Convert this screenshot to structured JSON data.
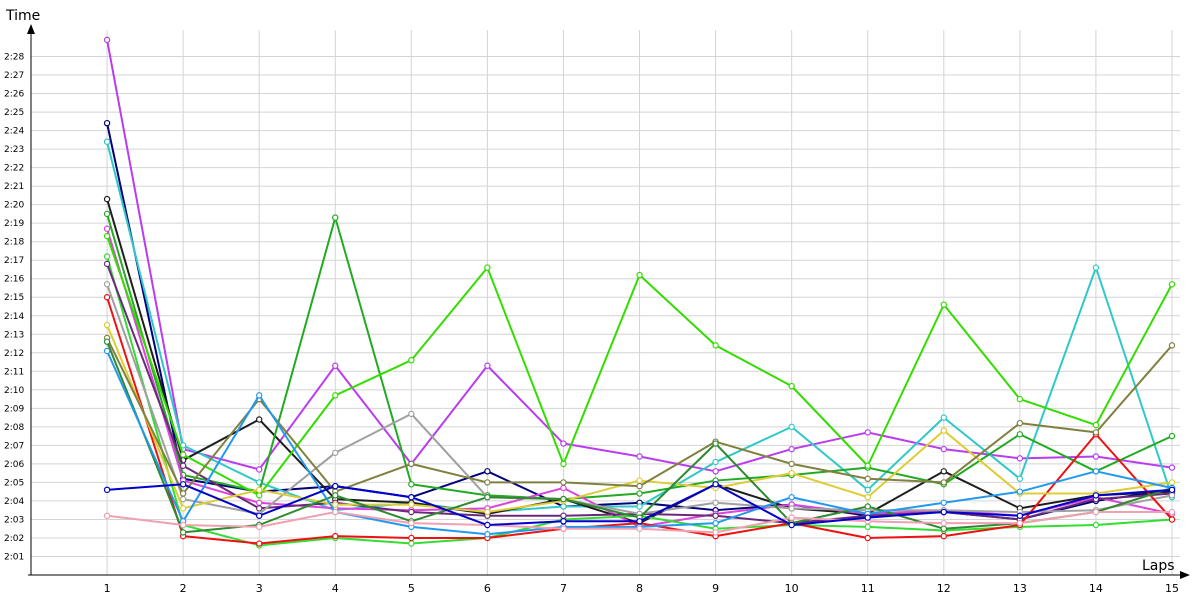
{
  "chart_data": {
    "type": "line",
    "xlabel": "Laps",
    "ylabel": "Time",
    "x": [
      1,
      2,
      3,
      4,
      5,
      6,
      7,
      8,
      9,
      10,
      11,
      12,
      13,
      14,
      15
    ],
    "ylim": [
      120,
      149
    ],
    "xlim": [
      0,
      15
    ],
    "y_tick_values": [
      121,
      122,
      123,
      124,
      125,
      126,
      127,
      128,
      129,
      130,
      131,
      132,
      133,
      134,
      135,
      136,
      137,
      138,
      139,
      140,
      141,
      142,
      143,
      144,
      145,
      146,
      147,
      148
    ],
    "y_tick_labels": [
      "2:01",
      "2:02",
      "2:03",
      "2:04",
      "2:05",
      "2:06",
      "2:07",
      "2:08",
      "2:09",
      "2:10",
      "2:11",
      "2:12",
      "2:13",
      "2:14",
      "2:15",
      "2:16",
      "2:17",
      "2:18",
      "2:19",
      "2:20",
      "2:21",
      "2:22",
      "2:23",
      "2:24",
      "2:25",
      "2:26",
      "2:27",
      "2:28"
    ],
    "x_tick_labels": [
      "1",
      "2",
      "3",
      "4",
      "5",
      "6",
      "7",
      "8",
      "9",
      "10",
      "11",
      "12",
      "13",
      "14",
      "15"
    ],
    "grid": true,
    "legend": "none",
    "series": [
      {
        "color": "#b93cf0",
        "values": [
          148.9,
          126.8,
          125.7,
          131.3,
          126.0,
          131.3,
          127.1,
          126.4,
          125.6,
          126.8,
          127.7,
          126.8,
          126.3,
          126.4,
          125.8
        ]
      },
      {
        "color": "#00007a",
        "values": [
          144.4,
          125.2,
          124.5,
          124.8,
          124.2,
          125.6,
          123.7,
          123.9,
          123.5,
          123.8,
          123.2,
          123.4,
          123.0,
          124.0,
          124.6
        ]
      },
      {
        "color": "#30c8c8",
        "values": [
          143.4,
          127.0,
          125.0,
          123.5,
          123.9,
          123.4,
          123.7,
          123.7,
          126.1,
          128.0,
          124.6,
          128.5,
          125.2,
          136.6,
          124.2
        ]
      },
      {
        "color": "#1e1e1e",
        "values": [
          140.3,
          126.2,
          128.4,
          124.1,
          123.9,
          123.3,
          124.1,
          122.8,
          124.9,
          123.6,
          123.3,
          125.6,
          123.6,
          124.3,
          124.5
        ]
      },
      {
        "color": "#22aa22",
        "values": [
          139.5,
          125.4,
          124.5,
          139.3,
          124.9,
          124.3,
          124.1,
          124.4,
          125.1,
          125.4,
          125.8,
          124.9,
          127.6,
          125.6,
          127.5
        ]
      },
      {
        "color": "#dd44dd",
        "values": [
          138.7,
          125.1,
          123.9,
          123.6,
          123.5,
          123.6,
          124.7,
          122.6,
          123.3,
          123.8,
          123.3,
          123.5,
          123.2,
          124.2,
          123.3
        ]
      },
      {
        "color": "#33dd00",
        "values": [
          138.3,
          126.5,
          124.3,
          129.7,
          131.6,
          136.6,
          126.0,
          136.2,
          132.4,
          130.2,
          125.9,
          134.6,
          129.5,
          128.1,
          135.7
        ]
      },
      {
        "color": "#33dd33",
        "values": [
          137.2,
          122.7,
          121.6,
          122.0,
          121.7,
          122.0,
          123.0,
          123.2,
          122.5,
          122.7,
          122.6,
          122.4,
          122.6,
          122.7,
          123.0
        ]
      },
      {
        "color": "#6a2a7a",
        "values": [
          136.8,
          125.9,
          123.6,
          123.9,
          123.4,
          123.2,
          123.2,
          123.3,
          123.2,
          122.8,
          123.2,
          123.4,
          123.0,
          124.1,
          124.4
        ]
      },
      {
        "color": "#a0a0a0",
        "values": [
          135.7,
          124.1,
          123.3,
          126.6,
          128.7,
          124.2,
          124.1,
          123.3,
          123.9,
          123.6,
          123.5,
          123.5,
          123.4,
          123.5,
          124.3
        ]
      },
      {
        "color": "#ee1111",
        "values": [
          135.0,
          122.1,
          121.7,
          122.1,
          122.0,
          122.0,
          122.5,
          122.8,
          122.1,
          122.8,
          122.0,
          122.1,
          122.7,
          127.6,
          123.0
        ]
      },
      {
        "color": "#ddcc33",
        "values": [
          133.5,
          123.6,
          124.6,
          123.8,
          123.8,
          123.4,
          124.0,
          125.1,
          124.7,
          125.5,
          124.2,
          127.8,
          124.4,
          124.4,
          125.0
        ]
      },
      {
        "color": "#808040",
        "values": [
          132.8,
          124.4,
          129.5,
          124.5,
          126.0,
          125.0,
          125.0,
          124.8,
          127.2,
          126.0,
          125.2,
          125.0,
          128.2,
          127.7,
          132.4
        ]
      },
      {
        "color": "#2e8a2e",
        "values": [
          132.6,
          122.3,
          122.7,
          124.3,
          122.9,
          124.2,
          124.1,
          123.1,
          127.1,
          122.8,
          123.7,
          122.5,
          122.8,
          123.4,
          124.7
        ]
      },
      {
        "color": "#2299ee",
        "values": [
          132.1,
          122.9,
          129.7,
          123.4,
          122.6,
          122.2,
          122.6,
          122.6,
          122.8,
          124.2,
          123.3,
          123.9,
          124.5,
          125.6,
          124.7
        ]
      },
      {
        "color": "#f0a0b0",
        "values": [
          123.2,
          122.7,
          122.6,
          123.4,
          122.8,
          122.7,
          122.5,
          122.5,
          122.3,
          123.1,
          122.9,
          122.8,
          122.8,
          123.4,
          123.4
        ]
      },
      {
        "color": "#0000cc",
        "values": [
          124.6,
          124.9,
          123.2,
          124.8,
          124.2,
          122.7,
          122.9,
          122.9,
          124.9,
          122.7,
          123.1,
          123.4,
          123.2,
          124.3,
          124.6
        ]
      }
    ]
  }
}
